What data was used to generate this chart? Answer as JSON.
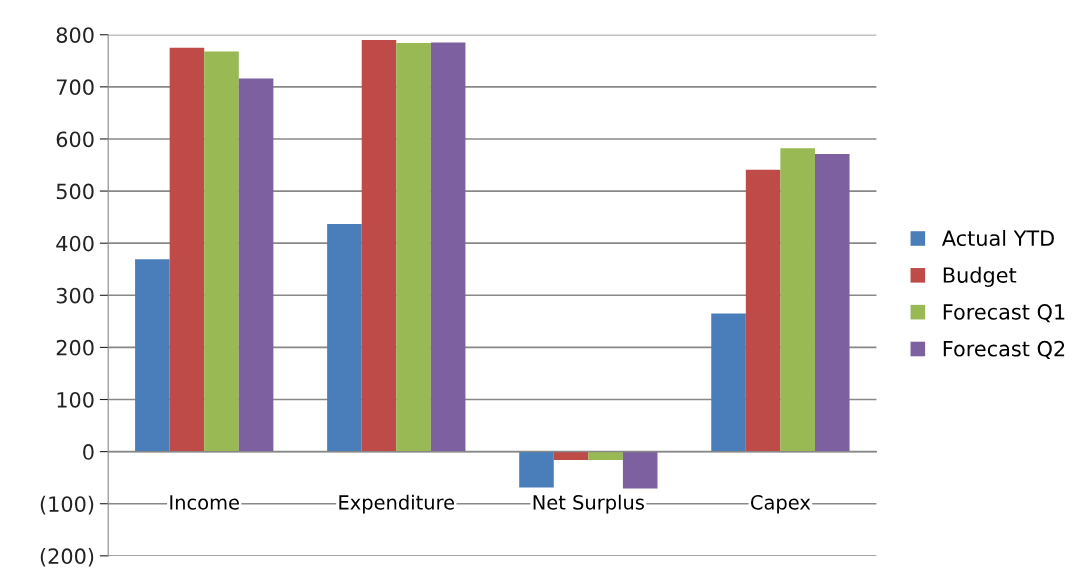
{
  "chart_data": {
    "type": "bar",
    "categories": [
      "Income",
      "Expenditure",
      "Net Surplus",
      "Capex"
    ],
    "series": [
      {
        "name": "Actual YTD",
        "color": "#4a7ebb",
        "values": [
          369,
          437,
          -69,
          265
        ]
      },
      {
        "name": "Budget",
        "color": "#be4b48",
        "values": [
          775,
          790,
          -16,
          541
        ]
      },
      {
        "name": "Forecast Q1",
        "color": "#98b954",
        "values": [
          768,
          784,
          -16,
          582
        ]
      },
      {
        "name": "Forecast Q2",
        "color": "#7d60a0",
        "values": [
          716,
          785,
          -71,
          571
        ]
      }
    ],
    "ylim": [
      -200,
      800
    ],
    "yticks": [
      {
        "value": -200,
        "label": "(200)"
      },
      {
        "value": -100,
        "label": "(100)"
      },
      0,
      100,
      200,
      300,
      400,
      500,
      600,
      700,
      800
    ],
    "grid": "y",
    "legend": "right"
  }
}
